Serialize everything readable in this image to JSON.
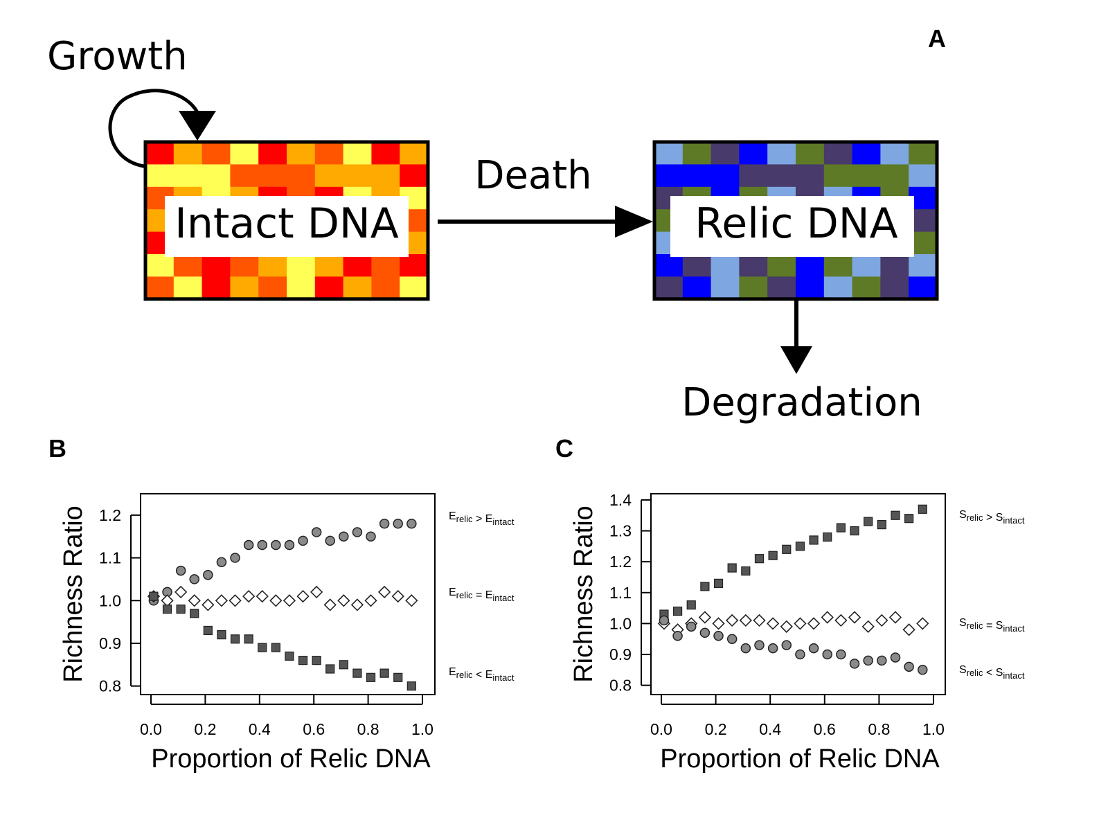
{
  "panel_a": {
    "label": "A",
    "growth_label": "Growth",
    "death_label": "Death",
    "degradation_label": "Degradation",
    "intact_box_label": "Intact DNA",
    "relic_box_label": "Relic DNA",
    "intact_colors": [
      "#ff0000",
      "#ffff55",
      "#ff5500",
      "#ffaa00"
    ],
    "relic_colors": [
      "#5e7a26",
      "#7ea6e0",
      "#0000ff",
      "#483a6a"
    ]
  },
  "chart_data": [
    {
      "type": "scatter",
      "panel_label": "B",
      "xlabel": "Proportion of Relic DNA",
      "ylabel": "Richness Ratio",
      "xlim": [
        0.0,
        1.0
      ],
      "ylim": [
        0.78,
        1.25
      ],
      "xticks": [
        "0.0",
        "0.2",
        "0.4",
        "0.6",
        "0.8",
        "1.0"
      ],
      "yticks": [
        "0.8",
        "0.9",
        "1.0",
        "1.1",
        "1.2"
      ],
      "x": [
        0.01,
        0.06,
        0.11,
        0.16,
        0.21,
        0.26,
        0.31,
        0.36,
        0.41,
        0.46,
        0.51,
        0.56,
        0.61,
        0.66,
        0.71,
        0.76,
        0.81,
        0.86,
        0.91,
        0.96
      ],
      "series": [
        {
          "name": "E_relic > E_intact",
          "marker": "circle",
          "label_main": "E",
          "label_sub1": "relic",
          "label_op": " > ",
          "label_sub2": "intact",
          "values": [
            1.0,
            1.02,
            1.07,
            1.05,
            1.06,
            1.09,
            1.1,
            1.13,
            1.13,
            1.13,
            1.13,
            1.14,
            1.16,
            1.14,
            1.15,
            1.16,
            1.15,
            1.18,
            1.18,
            1.18
          ]
        },
        {
          "name": "E_relic = E_intact",
          "marker": "diamond",
          "label_main": "E",
          "label_sub1": "relic",
          "label_op": " = ",
          "label_sub2": "intact",
          "values": [
            1.01,
            1.0,
            1.02,
            1.0,
            0.99,
            1.0,
            1.0,
            1.01,
            1.01,
            1.0,
            1.0,
            1.01,
            1.02,
            0.99,
            1.0,
            0.99,
            1.0,
            1.02,
            1.01,
            1.0
          ]
        },
        {
          "name": "E_relic < E_intact",
          "marker": "square",
          "label_main": "E",
          "label_sub1": "relic",
          "label_op": " < ",
          "label_sub2": "intact",
          "values": [
            1.01,
            0.98,
            0.98,
            0.97,
            0.93,
            0.92,
            0.91,
            0.91,
            0.89,
            0.89,
            0.87,
            0.86,
            0.86,
            0.84,
            0.85,
            0.83,
            0.82,
            0.83,
            0.82,
            0.8
          ]
        }
      ]
    },
    {
      "type": "scatter",
      "panel_label": "C",
      "xlabel": "Proportion of Relic DNA",
      "ylabel": "Richness Ratio",
      "xlim": [
        0.0,
        1.0
      ],
      "ylim": [
        0.77,
        1.42
      ],
      "xticks": [
        "0.0",
        "0.2",
        "0.4",
        "0.6",
        "0.8",
        "1.0"
      ],
      "yticks": [
        "0.8",
        "0.9",
        "1.0",
        "1.1",
        "1.2",
        "1.3",
        "1.4"
      ],
      "x": [
        0.01,
        0.06,
        0.11,
        0.16,
        0.21,
        0.26,
        0.31,
        0.36,
        0.41,
        0.46,
        0.51,
        0.56,
        0.61,
        0.66,
        0.71,
        0.76,
        0.81,
        0.86,
        0.91,
        0.96
      ],
      "series": [
        {
          "name": "S_relic > S_intact",
          "marker": "square",
          "label_main": "S",
          "label_sub1": "relic",
          "label_op": " > ",
          "label_sub2": "intact",
          "values": [
            1.03,
            1.04,
            1.06,
            1.12,
            1.13,
            1.18,
            1.17,
            1.21,
            1.22,
            1.24,
            1.25,
            1.27,
            1.28,
            1.31,
            1.3,
            1.33,
            1.32,
            1.35,
            1.34,
            1.37
          ]
        },
        {
          "name": "S_relic = S_intact",
          "marker": "diamond",
          "label_main": "S",
          "label_sub1": "relic",
          "label_op": " = ",
          "label_sub2": "intact",
          "values": [
            1.0,
            0.98,
            1.0,
            1.02,
            1.0,
            1.01,
            1.01,
            1.01,
            1.0,
            0.99,
            1.0,
            1.0,
            1.02,
            1.01,
            1.02,
            0.99,
            1.01,
            1.02,
            0.98,
            1.0
          ]
        },
        {
          "name": "S_relic < S_intact",
          "marker": "circle",
          "label_main": "S",
          "label_sub1": "relic",
          "label_op": " < ",
          "label_sub2": "intact",
          "values": [
            1.01,
            0.96,
            0.99,
            0.97,
            0.96,
            0.95,
            0.92,
            0.93,
            0.92,
            0.93,
            0.9,
            0.92,
            0.9,
            0.9,
            0.87,
            0.88,
            0.88,
            0.89,
            0.86,
            0.85
          ]
        }
      ]
    }
  ]
}
